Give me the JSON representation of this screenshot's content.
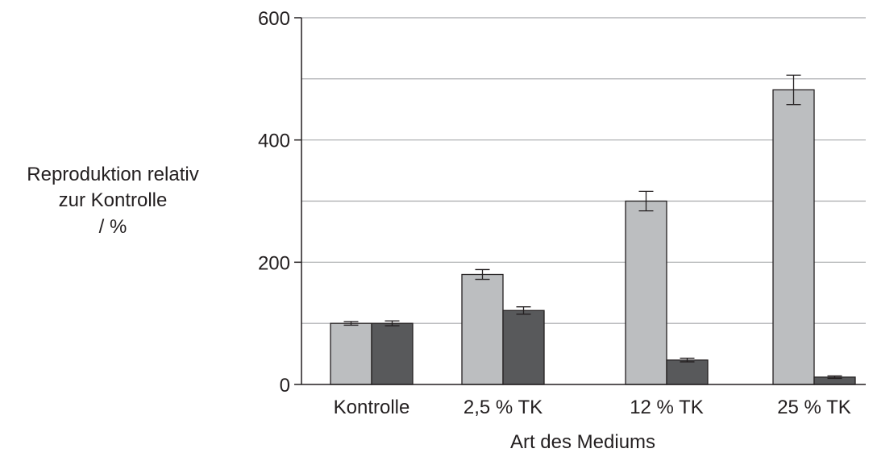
{
  "chart_data": {
    "type": "bar",
    "title": "",
    "xlabel": "Art des Mediums",
    "ylabel_lines": [
      "Reproduktion relativ",
      "zur Kontrolle",
      "/ %"
    ],
    "categories": [
      "Kontrolle",
      "2,5 % TK",
      "12 % TK",
      "25 % TK"
    ],
    "ylim": [
      0,
      600
    ],
    "yticks": [
      0,
      200,
      400,
      600
    ],
    "ytick_labels": [
      "0",
      "200",
      "400",
      "600"
    ],
    "grid_values": [
      100,
      200,
      300,
      400,
      500,
      600
    ],
    "legend": "none",
    "series": [
      {
        "color": "#bcbec0",
        "values": [
          100,
          180,
          300,
          482
        ],
        "errors": [
          3,
          8,
          16,
          24
        ]
      },
      {
        "color": "#58595b",
        "values": [
          100,
          121,
          40,
          12
        ],
        "errors": [
          4,
          6,
          3,
          2
        ]
      }
    ]
  }
}
